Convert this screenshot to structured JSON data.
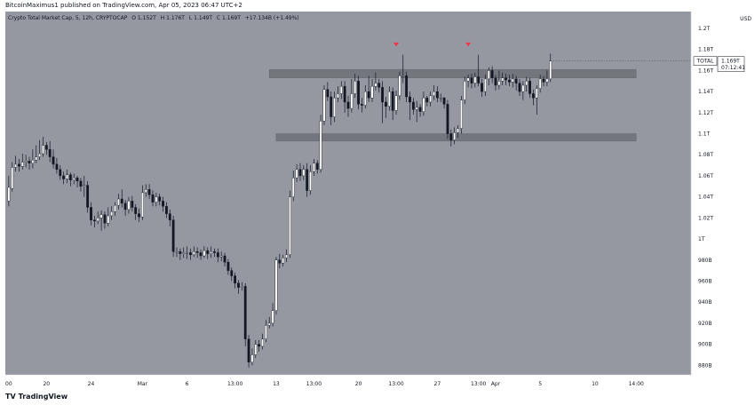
{
  "header": {
    "publisher": "BitcoinMaximus1 published on TradingView.com, Apr 05, 2023 06:47 UTC+2"
  },
  "legend": {
    "symbol": "Crypto Total Market Cap, 5, 12h, CRYPTOCAP",
    "o_label": "O",
    "o_value": "1.152T",
    "h_label": "H",
    "h_value": "1.176T",
    "l_label": "L",
    "l_value": "1.149T",
    "c_label": "C",
    "c_value": "1.169T",
    "change": "+17.134B (+1.49%)"
  },
  "price_tag": {
    "symbol": "TOTAL",
    "price": "1.169T",
    "countdown": "07:12:41"
  },
  "footer": {
    "brand": "TradingView"
  },
  "colors": {
    "plot_bg": "#9598a1",
    "zone": "#6f7177",
    "up_body": "#ffffff",
    "down_body": "#131722",
    "wick": "#131722",
    "marker": "#f23645"
  },
  "chart_data": {
    "type": "candlestick",
    "y_axis": {
      "unit_label": "USD",
      "ticks": [
        "1.2T",
        "1.18T",
        "1.16T",
        "1.14T",
        "1.12T",
        "1.1T",
        "1.08T",
        "1.06T",
        "1.04T",
        "1.02T",
        "1T",
        "980B",
        "960B",
        "940B",
        "920B",
        "900B",
        "880B"
      ],
      "tick_values": [
        1200,
        1180,
        1160,
        1140,
        1120,
        1100,
        1080,
        1060,
        1040,
        1020,
        1000,
        980,
        960,
        940,
        920,
        900,
        880
      ],
      "range": [
        871,
        1216
      ]
    },
    "x_axis": {
      "ticks": [
        "00",
        "20",
        "24",
        "Mar",
        "6",
        "13:00",
        "13",
        "13:00",
        "20",
        "13:00",
        "27",
        "13:00",
        "Apr",
        "5",
        "10",
        "14:00"
      ],
      "tick_index": [
        0,
        11,
        24,
        39,
        52,
        66,
        78,
        89,
        102,
        113,
        125,
        137,
        142,
        155,
        171,
        183
      ]
    },
    "horizontal_zones": [
      {
        "low": 1153,
        "high": 1161,
        "start_index": 76,
        "end_index": 183
      },
      {
        "low": 1093,
        "high": 1100,
        "start_index": 78,
        "end_index": 183
      }
    ],
    "markers": [
      {
        "index": 113,
        "value": 1184
      },
      {
        "index": 134,
        "value": 1184
      }
    ],
    "candles": [
      [
        1036,
        1049,
        1031,
        1060
      ],
      [
        1048,
        1068,
        1045,
        1073
      ],
      [
        1068,
        1071,
        1064,
        1079
      ],
      [
        1071,
        1069,
        1064,
        1076
      ],
      [
        1069,
        1073,
        1066,
        1081
      ],
      [
        1073,
        1074,
        1068,
        1080
      ],
      [
        1074,
        1072,
        1066,
        1078
      ],
      [
        1072,
        1075,
        1067,
        1085
      ],
      [
        1075,
        1078,
        1072,
        1089
      ],
      [
        1078,
        1081,
        1075,
        1094
      ],
      [
        1081,
        1089,
        1078,
        1097
      ],
      [
        1089,
        1085,
        1080,
        1092
      ],
      [
        1085,
        1078,
        1073,
        1093
      ],
      [
        1078,
        1071,
        1067,
        1085
      ],
      [
        1071,
        1066,
        1062,
        1077
      ],
      [
        1066,
        1060,
        1056,
        1070
      ],
      [
        1060,
        1057,
        1052,
        1064
      ],
      [
        1057,
        1061,
        1053,
        1066
      ],
      [
        1061,
        1056,
        1050,
        1063
      ],
      [
        1056,
        1058,
        1052,
        1062
      ],
      [
        1058,
        1055,
        1049,
        1060
      ],
      [
        1055,
        1050,
        1045,
        1058
      ],
      [
        1050,
        1051,
        1040,
        1060
      ],
      [
        1051,
        1030,
        1025,
        1055
      ],
      [
        1030,
        1018,
        1013,
        1035
      ],
      [
        1018,
        1017,
        1011,
        1022
      ],
      [
        1017,
        1020,
        1014,
        1026
      ],
      [
        1020,
        1023,
        1008,
        1027
      ],
      [
        1023,
        1015,
        1010,
        1026
      ],
      [
        1015,
        1022,
        1012,
        1030
      ],
      [
        1022,
        1026,
        1018,
        1031
      ],
      [
        1026,
        1032,
        1022,
        1035
      ],
      [
        1032,
        1038,
        1028,
        1043
      ],
      [
        1038,
        1034,
        1030,
        1047
      ],
      [
        1034,
        1028,
        1022,
        1037
      ],
      [
        1028,
        1036,
        1024,
        1040
      ],
      [
        1036,
        1030,
        1026,
        1041
      ],
      [
        1030,
        1024,
        1018,
        1033
      ],
      [
        1024,
        1021,
        1016,
        1029
      ],
      [
        1021,
        1044,
        1018,
        1051
      ],
      [
        1044,
        1047,
        1040,
        1052
      ],
      [
        1047,
        1042,
        1038,
        1052
      ],
      [
        1042,
        1035,
        1031,
        1046
      ],
      [
        1035,
        1040,
        1031,
        1044
      ],
      [
        1040,
        1036,
        1032,
        1043
      ],
      [
        1036,
        1031,
        1026,
        1040
      ],
      [
        1031,
        1024,
        1020,
        1035
      ],
      [
        1024,
        1018,
        1012,
        1028
      ],
      [
        1018,
        988,
        983,
        1022
      ],
      [
        988,
        988,
        983,
        992
      ],
      [
        988,
        986,
        980,
        991
      ],
      [
        986,
        987,
        982,
        992
      ],
      [
        987,
        987,
        981,
        993
      ],
      [
        987,
        985,
        980,
        991
      ],
      [
        985,
        988,
        983,
        993
      ],
      [
        988,
        987,
        982,
        992
      ],
      [
        987,
        984,
        980,
        990
      ],
      [
        984,
        989,
        982,
        993
      ],
      [
        989,
        986,
        981,
        992
      ],
      [
        986,
        988,
        982,
        993
      ],
      [
        988,
        987,
        983,
        991
      ],
      [
        987,
        983,
        978,
        991
      ],
      [
        983,
        984,
        979,
        988
      ],
      [
        984,
        978,
        974,
        987
      ],
      [
        978,
        970,
        966,
        981
      ],
      [
        970,
        965,
        960,
        973
      ],
      [
        965,
        958,
        953,
        968
      ],
      [
        958,
        954,
        948,
        961
      ],
      [
        954,
        955,
        951,
        959
      ],
      [
        955,
        905,
        898,
        958
      ],
      [
        905,
        883,
        878,
        909
      ],
      [
        883,
        890,
        880,
        896
      ],
      [
        890,
        900,
        887,
        904
      ],
      [
        900,
        898,
        893,
        904
      ],
      [
        898,
        905,
        895,
        910
      ],
      [
        905,
        918,
        902,
        923
      ],
      [
        918,
        920,
        915,
        926
      ],
      [
        920,
        932,
        917,
        939
      ],
      [
        932,
        980,
        928,
        983
      ],
      [
        980,
        977,
        972,
        986
      ],
      [
        977,
        982,
        974,
        985
      ],
      [
        982,
        985,
        978,
        990
      ],
      [
        985,
        1040,
        982,
        1046
      ],
      [
        1040,
        1058,
        1036,
        1065
      ],
      [
        1058,
        1066,
        1054,
        1071
      ],
      [
        1066,
        1060,
        1055,
        1072
      ],
      [
        1060,
        1066,
        1056,
        1070
      ],
      [
        1066,
        1046,
        1040,
        1072
      ],
      [
        1046,
        1064,
        1042,
        1070
      ],
      [
        1064,
        1072,
        1060,
        1076
      ],
      [
        1072,
        1066,
        1062,
        1075
      ],
      [
        1066,
        1112,
        1063,
        1118
      ],
      [
        1112,
        1142,
        1108,
        1146
      ],
      [
        1142,
        1135,
        1131,
        1149
      ],
      [
        1135,
        1116,
        1108,
        1140
      ],
      [
        1116,
        1134,
        1111,
        1140
      ],
      [
        1134,
        1138,
        1130,
        1145
      ],
      [
        1138,
        1145,
        1133,
        1150
      ],
      [
        1145,
        1130,
        1120,
        1150
      ],
      [
        1130,
        1124,
        1116,
        1136
      ],
      [
        1124,
        1138,
        1120,
        1152
      ],
      [
        1138,
        1150,
        1134,
        1157
      ],
      [
        1150,
        1128,
        1123,
        1155
      ],
      [
        1128,
        1127,
        1120,
        1134
      ],
      [
        1127,
        1140,
        1124,
        1146
      ],
      [
        1140,
        1134,
        1130,
        1155
      ],
      [
        1134,
        1145,
        1130,
        1152
      ],
      [
        1145,
        1148,
        1141,
        1158
      ],
      [
        1148,
        1144,
        1139,
        1152
      ],
      [
        1144,
        1130,
        1110,
        1150
      ],
      [
        1130,
        1126,
        1115,
        1135
      ],
      [
        1126,
        1140,
        1122,
        1145
      ],
      [
        1140,
        1122,
        1113,
        1144
      ],
      [
        1122,
        1136,
        1118,
        1141
      ],
      [
        1136,
        1155,
        1132,
        1159
      ],
      [
        1155,
        1155,
        1148,
        1175
      ],
      [
        1155,
        1135,
        1130,
        1159
      ],
      [
        1135,
        1130,
        1113,
        1140
      ],
      [
        1130,
        1123,
        1118,
        1134
      ],
      [
        1123,
        1125,
        1111,
        1131
      ],
      [
        1125,
        1121,
        1116,
        1128
      ],
      [
        1121,
        1134,
        1117,
        1140
      ],
      [
        1134,
        1130,
        1126,
        1136
      ],
      [
        1130,
        1136,
        1126,
        1140
      ],
      [
        1136,
        1140,
        1132,
        1146
      ],
      [
        1140,
        1134,
        1130,
        1145
      ],
      [
        1134,
        1134,
        1130,
        1138
      ],
      [
        1134,
        1128,
        1124,
        1135
      ],
      [
        1128,
        1100,
        1095,
        1132
      ],
      [
        1100,
        1094,
        1088,
        1104
      ],
      [
        1094,
        1101,
        1090,
        1106
      ],
      [
        1101,
        1105,
        1096,
        1108
      ],
      [
        1105,
        1132,
        1100,
        1136
      ],
      [
        1132,
        1150,
        1128,
        1154
      ],
      [
        1150,
        1153,
        1144,
        1156
      ],
      [
        1153,
        1148,
        1143,
        1157
      ],
      [
        1148,
        1154,
        1144,
        1158
      ],
      [
        1154,
        1148,
        1145,
        1175
      ],
      [
        1148,
        1140,
        1135,
        1152
      ],
      [
        1140,
        1152,
        1136,
        1156
      ],
      [
        1152,
        1160,
        1146,
        1163
      ],
      [
        1160,
        1153,
        1148,
        1164
      ],
      [
        1153,
        1146,
        1141,
        1156
      ],
      [
        1146,
        1150,
        1142,
        1160
      ],
      [
        1150,
        1153,
        1146,
        1158
      ],
      [
        1153,
        1151,
        1146,
        1157
      ],
      [
        1151,
        1149,
        1145,
        1156
      ],
      [
        1149,
        1152,
        1144,
        1157
      ],
      [
        1152,
        1148,
        1141,
        1155
      ],
      [
        1148,
        1140,
        1136,
        1152
      ],
      [
        1140,
        1146,
        1132,
        1150
      ],
      [
        1146,
        1150,
        1140,
        1154
      ],
      [
        1150,
        1138,
        1134,
        1153
      ],
      [
        1138,
        1134,
        1127,
        1142
      ],
      [
        1134,
        1143,
        1118,
        1146
      ],
      [
        1143,
        1152,
        1139,
        1156
      ],
      [
        1152,
        1149,
        1145,
        1155
      ],
      [
        1149,
        1152,
        1145,
        1160
      ],
      [
        1152,
        1169,
        1149,
        1176
      ]
    ]
  }
}
